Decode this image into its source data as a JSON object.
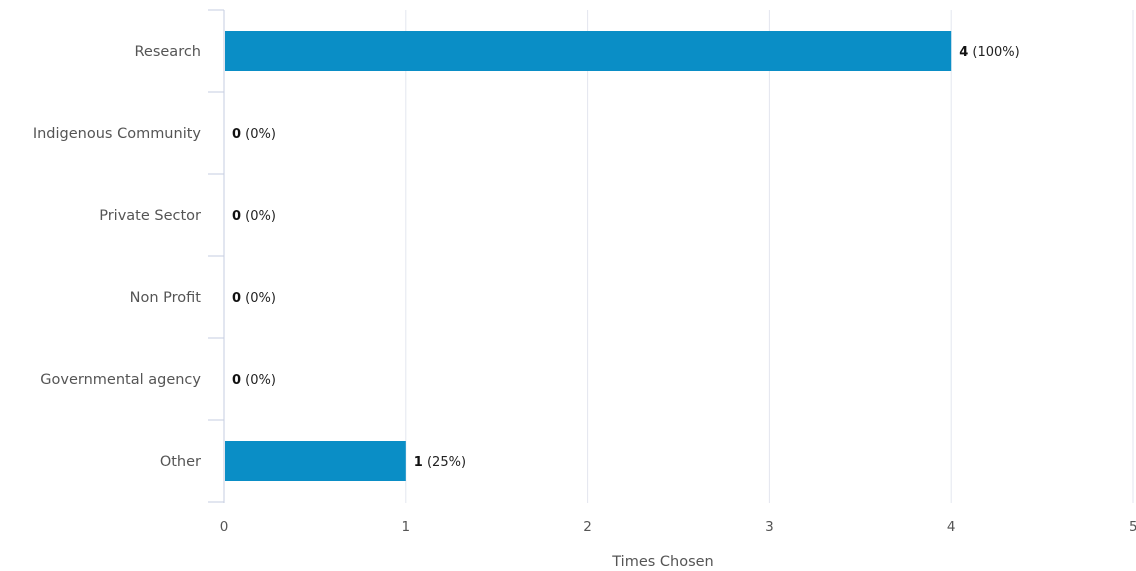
{
  "chart_data": {
    "type": "bar",
    "orientation": "horizontal",
    "categories": [
      "Research",
      "Indigenous Community",
      "Private Sector",
      "Non Profit",
      "Governmental agency",
      "Other"
    ],
    "values": [
      4,
      0,
      0,
      0,
      0,
      1
    ],
    "percentages": [
      "100%",
      "0%",
      "0%",
      "0%",
      "0%",
      "25%"
    ],
    "x_ticks": [
      "0",
      "1",
      "2",
      "3",
      "4",
      "5"
    ],
    "xlim": [
      0,
      5
    ],
    "xlabel": "Times Chosen",
    "ylabel": "",
    "title": "",
    "grid": "vertical",
    "legend": "none",
    "bar_color": "#0a8ec6",
    "grid_color": "#e3e6ef",
    "axis_color": "#c5cde0"
  }
}
